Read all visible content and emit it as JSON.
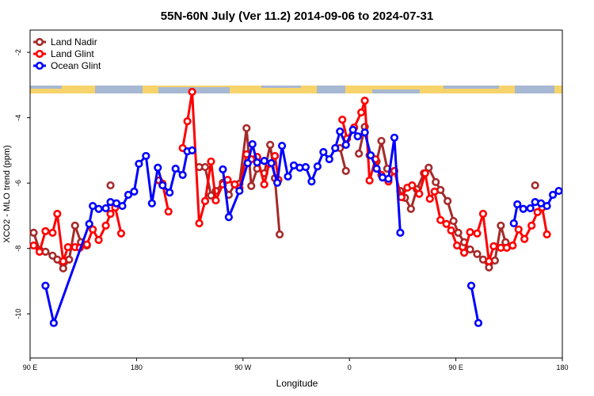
{
  "chart_data": {
    "type": "line",
    "title": "55N-60N July (Ver 11.2)   2014-09-06 to 2024-07-31",
    "x_label": "Longitude",
    "y_label": "XCO2 - MLO trend (ppm)",
    "xlim": [
      90,
      540
    ],
    "xticks": [
      {
        "value": 90,
        "label": "90 E"
      },
      {
        "value": 180,
        "label": "180"
      },
      {
        "value": 270,
        "label": "90 W"
      },
      {
        "value": 360,
        "label": "0"
      },
      {
        "value": 450,
        "label": "90 E"
      },
      {
        "value": 540,
        "label": "180"
      }
    ],
    "ylim": [
      -11.35,
      -1.32
    ],
    "yticks": [
      -2,
      -4,
      -6,
      -8,
      -10
    ],
    "legend": "top-left",
    "series": [
      {
        "name": "Land Nadir",
        "color": "#a52a2a",
        "x": [
          93,
          98,
          103,
          109,
          113,
          118,
          123,
          128,
          133,
          138,
          null,
          158,
          null,
          233,
          238,
          243,
          247,
          253,
          258,
          263,
          267,
          273,
          277,
          282,
          288,
          293,
          297,
          301,
          null,
          352,
          357,
          null,
          368,
          373,
          377,
          383,
          387,
          392,
          null,
          403,
          407,
          412,
          417,
          423,
          427,
          433,
          437,
          443,
          448,
          452,
          457,
          462,
          468,
          473,
          478,
          483,
          488,
          492,
          498,
          null,
          517
        ],
        "values": [
          -7.52,
          -8.05,
          -8.1,
          -8.22,
          -8.34,
          -8.61,
          -8.34,
          -7.3,
          -7.81,
          -7.91,
          null,
          -6.07,
          null,
          -5.51,
          -5.51,
          -6.38,
          -6.24,
          -5.99,
          -6.36,
          -6.04,
          -6.02,
          -4.32,
          -6.09,
          -5.56,
          -5.7,
          -4.83,
          -5.85,
          -7.57,
          null,
          -4.93,
          -5.63,
          null,
          -5.1,
          -4.28,
          -5.15,
          -5.34,
          -4.71,
          -5.56,
          null,
          -6.24,
          -6.45,
          -6.79,
          -6.19,
          -5.7,
          -5.53,
          -5.97,
          -6.21,
          -6.55,
          -7.16,
          -7.52,
          -7.81,
          -8.03,
          -8.17,
          -8.34,
          -8.58,
          -8.37,
          -7.3,
          -7.81,
          -7.91,
          null,
          -6.07
        ]
      },
      {
        "name": "Land Glint",
        "color": "#ff0000",
        "x": [
          93,
          98,
          103,
          109,
          113,
          118,
          122,
          128,
          132,
          138,
          143,
          148,
          154,
          158,
          162,
          167,
          null,
          199,
          202,
          207,
          null,
          219,
          223,
          227,
          233,
          238,
          243,
          247,
          253,
          257,
          263,
          267,
          273,
          277,
          282,
          288,
          292,
          297,
          300,
          null,
          354,
          358,
          364,
          370,
          373,
          377,
          382,
          387,
          393,
          398,
          404,
          409,
          413,
          419,
          424,
          428,
          432,
          437,
          442,
          446,
          451,
          457,
          462,
          468,
          473,
          478,
          482,
          488,
          493,
          498,
          503,
          508,
          514,
          519,
          523,
          527
        ],
        "values": [
          -7.91,
          -8.1,
          -7.47,
          -7.52,
          -6.94,
          -8.39,
          -7.96,
          -7.96,
          -7.98,
          -7.88,
          -7.42,
          -7.74,
          -7.3,
          -6.94,
          -6.75,
          -7.54,
          null,
          -5.92,
          -6.02,
          -6.87,
          null,
          -4.93,
          -4.11,
          -3.21,
          -7.23,
          -6.55,
          -5.34,
          -6.53,
          -6.04,
          -5.9,
          -6.04,
          -6.16,
          -5.12,
          -5.27,
          -5.2,
          -6.04,
          -5.41,
          -5.17,
          -5.9,
          null,
          -4.06,
          -4.64,
          -4.3,
          -3.84,
          -3.48,
          -5.92,
          -5.27,
          -5.75,
          -5.95,
          -5.63,
          -6.43,
          -6.14,
          -6.07,
          -6.33,
          -5.7,
          -6.48,
          -6.26,
          -7.13,
          -7.25,
          -7.45,
          -7.91,
          -8.13,
          -7.5,
          -7.54,
          -6.94,
          -8.39,
          -7.93,
          -7.98,
          -7.98,
          -7.91,
          -7.42,
          -7.71,
          -7.3,
          -6.89,
          -6.75,
          -7.57
        ]
      },
      {
        "name": "Ocean Glint",
        "color": "#0000ff",
        "x": [
          103,
          110,
          140,
          143,
          148,
          154,
          158,
          163,
          168,
          173,
          178,
          182,
          188,
          193,
          198,
          202,
          208,
          213,
          219,
          223,
          227,
          null,
          253,
          258,
          267,
          274,
          278,
          282,
          288,
          294,
          299,
          303,
          308,
          313,
          318,
          323,
          328,
          333,
          338,
          343,
          348,
          352,
          357,
          363,
          367,
          373,
          378,
          383,
          388,
          393,
          398,
          403,
          null,
          463,
          469,
          null,
          499,
          502,
          507,
          513,
          517,
          522,
          527,
          532,
          537
        ],
        "values": [
          -9.14,
          -10.28,
          -7.25,
          -6.7,
          -6.79,
          -6.77,
          -6.58,
          -6.62,
          -6.7,
          -6.36,
          -6.26,
          -5.41,
          -5.17,
          -6.62,
          -5.53,
          -6.07,
          -6.29,
          -5.56,
          -5.75,
          -5.03,
          -5.0,
          null,
          -5.58,
          -7.04,
          -6.24,
          -5.39,
          -4.81,
          -5.37,
          -5.32,
          -5.39,
          -5.99,
          -4.86,
          -5.8,
          -5.46,
          -5.53,
          -5.51,
          -5.95,
          -5.49,
          -5.05,
          -5.27,
          -4.93,
          -4.42,
          -4.83,
          -4.37,
          -4.57,
          -4.45,
          -5.15,
          -5.56,
          -5.83,
          -5.87,
          -4.61,
          -7.52,
          null,
          -9.14,
          -10.28,
          null,
          -7.23,
          -6.65,
          -6.79,
          -6.77,
          -6.58,
          -6.62,
          -6.7,
          -6.36,
          -6.24
        ]
      }
    ]
  }
}
